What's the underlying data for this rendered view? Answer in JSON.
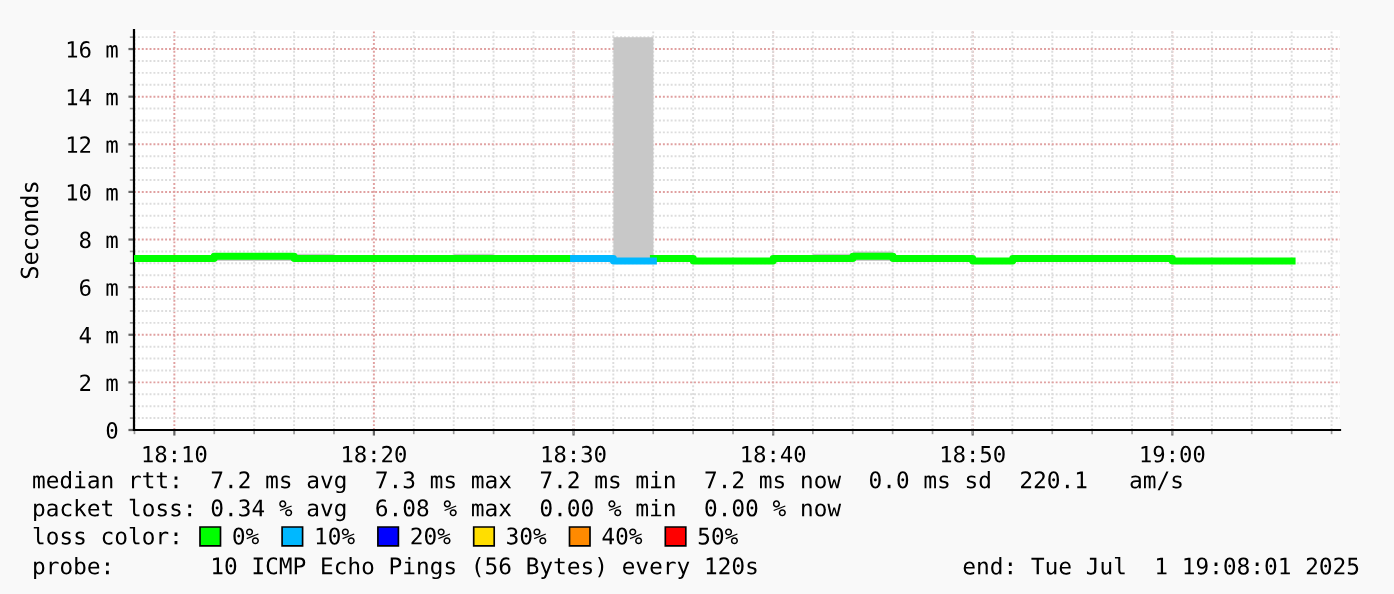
{
  "chart_data": {
    "type": "step",
    "ylabel": "Seconds",
    "x": [
      18.1333,
      18.1667,
      18.2,
      18.2333,
      18.2667,
      18.3,
      18.3333,
      18.3667,
      18.4,
      18.4333,
      18.4667,
      18.5,
      18.5333,
      18.5667,
      18.6,
      18.6333,
      18.6667,
      18.7,
      18.7333,
      18.7667,
      18.8,
      18.8333,
      18.8667,
      18.9,
      18.9333,
      18.9667,
      19.0,
      19.0333,
      19.0667,
      19.1
    ],
    "series": [
      {
        "name": "0%",
        "color": "#00ff00",
        "values": [
          7.2,
          7.2,
          7.3,
          7.3,
          7.2,
          7.2,
          7.2,
          7.2,
          7.2,
          7.2,
          7.2,
          7.2,
          null,
          7.2,
          7.1,
          7.1,
          7.2,
          7.2,
          7.3,
          7.2,
          7.2,
          7.1,
          7.2,
          7.2,
          7.2,
          7.2,
          7.1,
          7.1,
          7.1,
          7.1
        ],
        "lower": [
          7.1,
          7.1,
          7.1,
          7.1,
          7.1,
          7.1,
          7.1,
          7.1,
          7.1,
          7.1,
          7.1,
          7.1,
          7.1,
          7.1,
          7.1,
          7.1,
          7.1,
          7.1,
          7.1,
          7.1,
          7.1,
          7.1,
          7.1,
          7.1,
          7.1,
          7.1,
          7.1,
          7.1,
          7.1,
          7.1
        ],
        "upper": [
          7.3,
          7.3,
          7.4,
          7.4,
          7.4,
          7.2,
          7.2,
          7.3,
          7.4,
          7.2,
          7.2,
          7.2,
          16.5,
          7.3,
          7.2,
          7.2,
          7.2,
          7.4,
          7.5,
          7.3,
          7.3,
          7.2,
          7.3,
          7.2,
          7.2,
          7.2,
          7.2,
          7.2,
          7.2,
          7.2
        ]
      },
      {
        "name": "10%",
        "color": "#00b8ff",
        "values": [
          null,
          null,
          null,
          null,
          null,
          null,
          null,
          null,
          null,
          null,
          null,
          7.2,
          7.1,
          7.1,
          null,
          null,
          null,
          null,
          null,
          null,
          null,
          null,
          null,
          null,
          null,
          null,
          null,
          null,
          null,
          null
        ]
      },
      {
        "name": "20%",
        "color": "#0000ff",
        "values": [
          null,
          null,
          null,
          null,
          null,
          null,
          null,
          null,
          null,
          null,
          null,
          null,
          null,
          null,
          null,
          null,
          null,
          null,
          null,
          null,
          null,
          null,
          null,
          null,
          null,
          null,
          null,
          null,
          null,
          null
        ]
      },
      {
        "name": "30%",
        "color": "#ffde00",
        "values": [
          null,
          null,
          null,
          null,
          null,
          null,
          null,
          null,
          null,
          null,
          null,
          null,
          null,
          null,
          null,
          null,
          null,
          null,
          null,
          null,
          null,
          null,
          null,
          null,
          null,
          null,
          null,
          null,
          null,
          null
        ]
      },
      {
        "name": "40%",
        "color": "#ff8a00",
        "values": [
          null,
          null,
          null,
          null,
          null,
          null,
          null,
          null,
          null,
          null,
          null,
          null,
          null,
          null,
          null,
          null,
          null,
          null,
          null,
          null,
          null,
          null,
          null,
          null,
          null,
          null,
          null,
          null,
          null,
          null
        ]
      },
      {
        "name": "50%",
        "color": "#ff0000",
        "values": [
          null,
          null,
          null,
          null,
          null,
          null,
          null,
          null,
          null,
          null,
          null,
          null,
          null,
          null,
          null,
          null,
          null,
          null,
          null,
          null,
          null,
          null,
          null,
          null,
          null,
          null,
          null,
          null,
          null,
          null
        ]
      }
    ],
    "legend": "bottom",
    "legend_title": "loss color:",
    "xlim": [
      18.133,
      19.14
    ],
    "xticks": [
      {
        "value": 18.1667,
        "label": "18:10"
      },
      {
        "value": 18.3333,
        "label": "18:20"
      },
      {
        "value": 18.5,
        "label": "18:30"
      },
      {
        "value": 18.6667,
        "label": "18:40"
      },
      {
        "value": 18.8333,
        "label": "18:50"
      },
      {
        "value": 19.0,
        "label": "19:00"
      }
    ],
    "ylim": [
      0,
      16.8
    ],
    "yticks": [
      0,
      {
        "value": 2,
        "label": "2 m"
      },
      {
        "value": 4,
        "label": "4 m"
      },
      {
        "value": 6,
        "label": "6 m"
      },
      {
        "value": 8,
        "label": "8 m"
      },
      {
        "value": 10,
        "label": "10 m"
      },
      {
        "value": 12,
        "label": "12 m"
      },
      {
        "value": 14,
        "label": "14 m"
      },
      {
        "value": 16,
        "label": "16 m"
      }
    ],
    "grid": true,
    "annotations": [
      "median rtt:  7.2 ms avg  7.3 ms max  7.2 ms min  7.2 ms now  0.0 ms sd  220.1   am/s",
      "packet loss: 0.34 % avg  6.08 % max  0.00 % min  0.00 % now",
      "probe:       10 ICMP Echo Pings (56 Bytes) every 120s",
      "end: Tue Jul  1 19:08:01 2025"
    ]
  }
}
